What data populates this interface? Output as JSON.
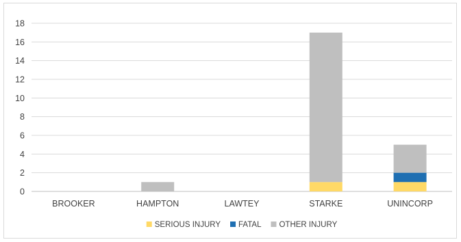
{
  "chart_data": {
    "type": "bar",
    "stacked": true,
    "categories": [
      "BROOKER",
      "HAMPTON",
      "LAWTEY",
      "STARKE",
      "UNINCORP"
    ],
    "series": [
      {
        "name": "SERIOUS INJURY",
        "color": "#FFD966",
        "values": [
          0,
          0,
          0,
          1,
          1
        ]
      },
      {
        "name": "FATAL",
        "color": "#1F6FB2",
        "values": [
          0,
          0,
          0,
          0,
          1
        ]
      },
      {
        "name": "OTHER INJURY",
        "color": "#BFBFBF",
        "values": [
          0,
          1,
          0,
          16,
          3
        ]
      }
    ],
    "title": "",
    "xlabel": "",
    "ylabel": "",
    "ylim": [
      0,
      18
    ],
    "yticks": [
      0,
      2,
      4,
      6,
      8,
      10,
      12,
      14,
      16,
      18
    ],
    "grid": true,
    "legend_position": "bottom"
  }
}
